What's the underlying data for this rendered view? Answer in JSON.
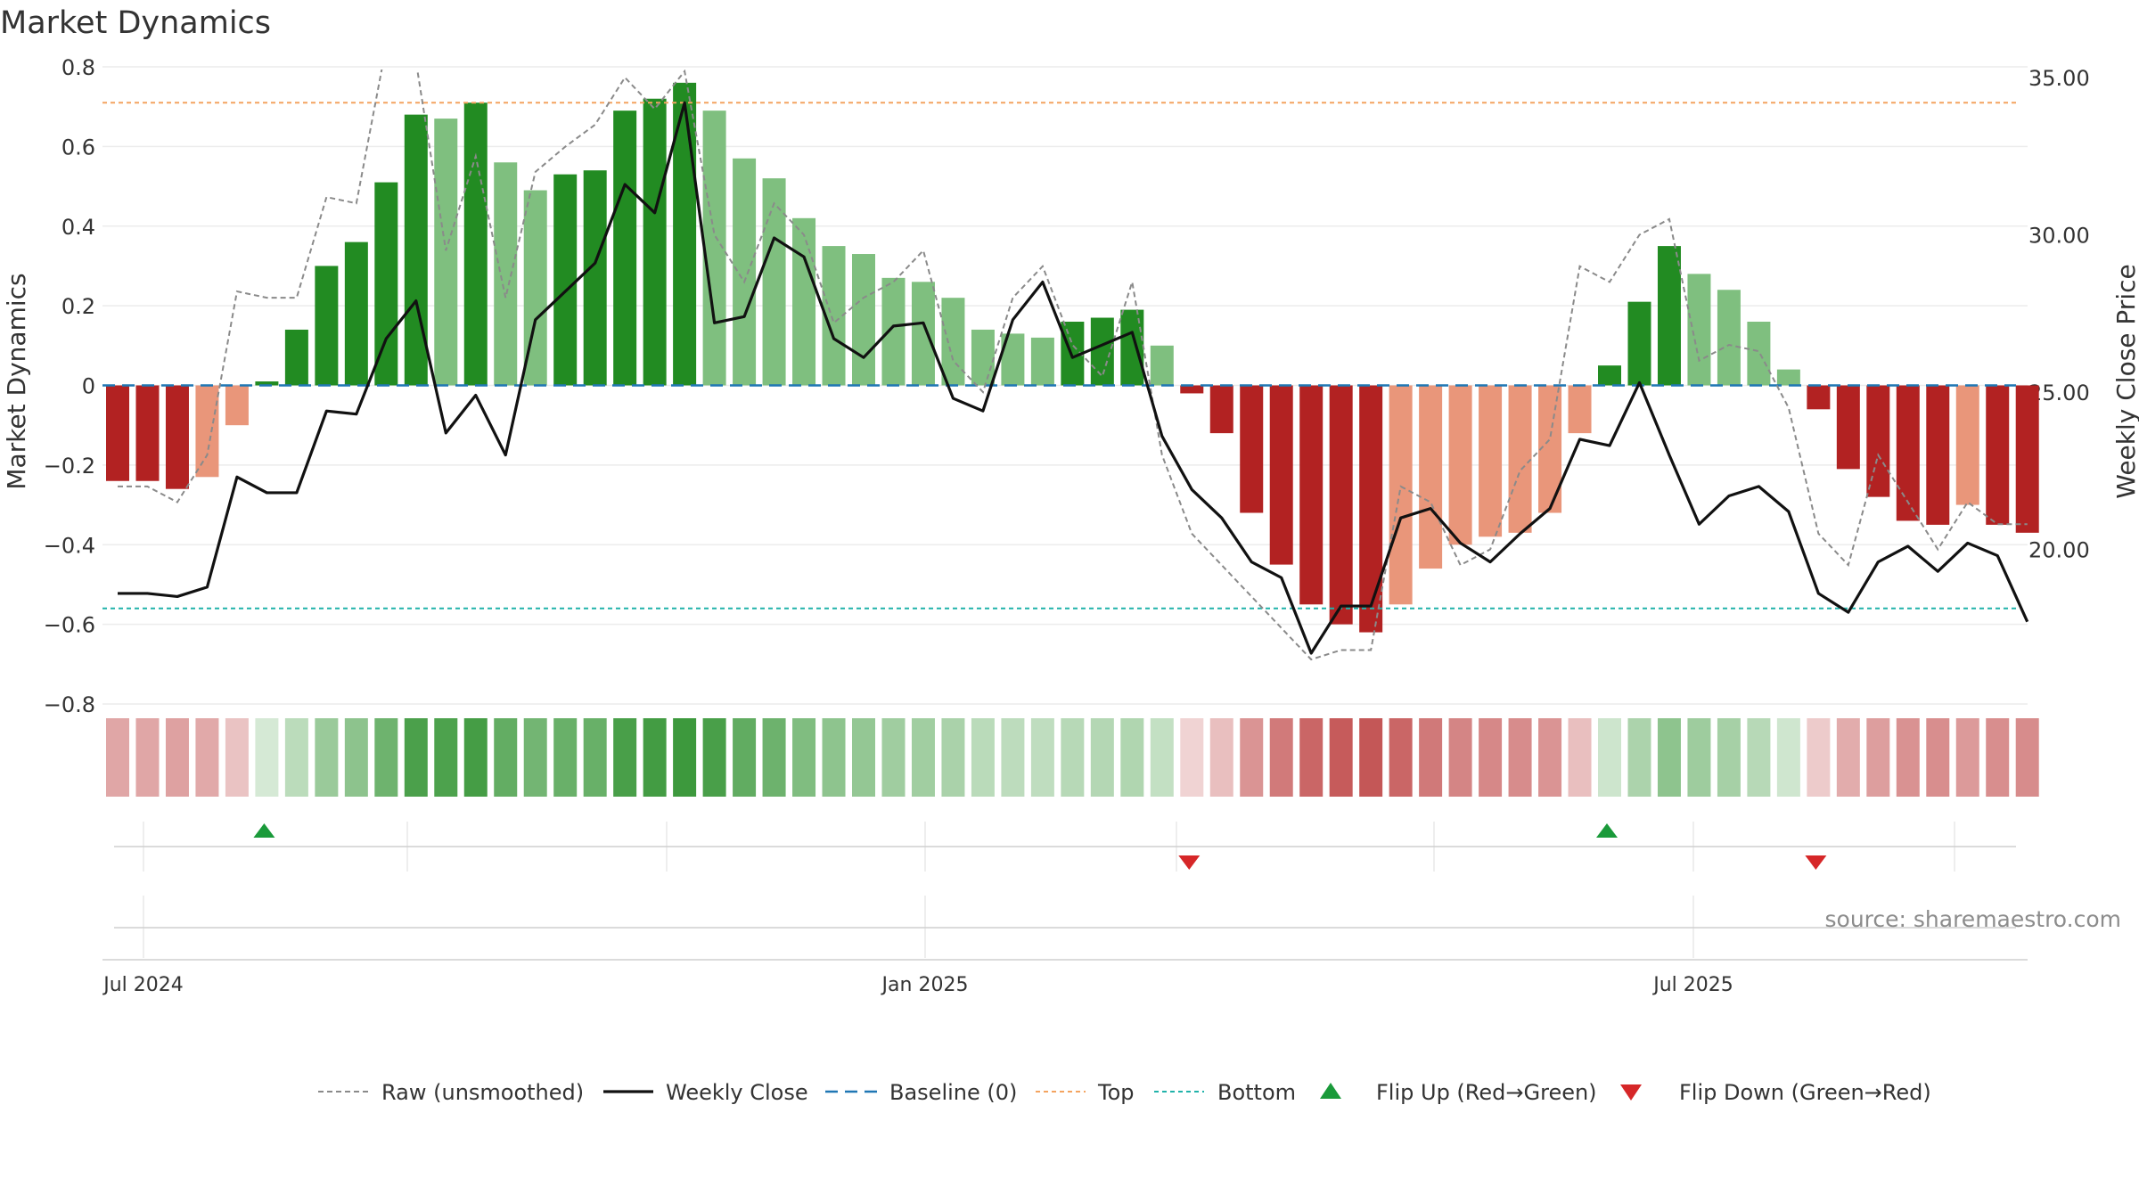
{
  "title": "Market Dynamics",
  "source": "source: sharemaestro.com",
  "colors": {
    "strong_green": "#228B22",
    "light_green": "#7FBF7F",
    "strong_red": "#B22222",
    "light_red": "#E9967A",
    "close_line": "#111111",
    "raw_line": "#8a8a8a",
    "baseline": "#1f77b4",
    "top": "#F4A460",
    "bottom": "#20B2AA",
    "flip_up": "#1a9a3a",
    "flip_down": "#d62728"
  },
  "chart_data": {
    "type": "bar",
    "ylabel": "Market Dynamics",
    "y2label": "Weekly Close Price",
    "ylim": [
      -0.8,
      0.8
    ],
    "y2lim": [
      15,
      35
    ],
    "yticks": [
      "0.8",
      "0.6",
      "0.4",
      "0.2",
      "0",
      "−0.2",
      "−0.4",
      "−0.6",
      "−0.8"
    ],
    "y2ticks": [
      "35.00",
      "30.00",
      "25.00",
      "20.00"
    ],
    "xticks": [
      "Jul 2024",
      "Jan 2025",
      "Jul 2025"
    ],
    "top_level": 0.71,
    "bottom_level": -0.56,
    "grid": true,
    "bars": [
      -0.24,
      -0.24,
      -0.26,
      -0.23,
      -0.1,
      0.01,
      0.14,
      0.3,
      0.36,
      0.51,
      0.68,
      0.67,
      0.71,
      0.56,
      0.49,
      0.53,
      0.54,
      0.69,
      0.72,
      0.76,
      0.69,
      0.57,
      0.52,
      0.42,
      0.35,
      0.33,
      0.27,
      0.26,
      0.22,
      0.14,
      0.13,
      0.12,
      0.16,
      0.17,
      0.19,
      0.1,
      -0.02,
      -0.12,
      -0.32,
      -0.45,
      -0.55,
      -0.6,
      -0.62,
      -0.55,
      -0.46,
      -0.4,
      -0.38,
      -0.37,
      -0.32,
      -0.12,
      0.05,
      0.21,
      0.35,
      0.28,
      0.24,
      0.16,
      0.04,
      -0.06,
      -0.21,
      -0.28,
      -0.34,
      -0.35,
      -0.3,
      -0.35,
      -0.37
    ],
    "bar_strength": [
      "strong",
      "strong",
      "strong",
      "light",
      "light",
      "strong",
      "strong",
      "strong",
      "strong",
      "strong",
      "strong",
      "light",
      "strong",
      "light",
      "light",
      "strong",
      "strong",
      "strong",
      "strong",
      "strong",
      "light",
      "light",
      "light",
      "light",
      "light",
      "light",
      "light",
      "light",
      "light",
      "light",
      "light",
      "light",
      "strong",
      "strong",
      "strong",
      "light",
      "strong",
      "strong",
      "strong",
      "strong",
      "strong",
      "strong",
      "strong",
      "light",
      "light",
      "light",
      "light",
      "light",
      "light",
      "light",
      "strong",
      "strong",
      "strong",
      "light",
      "light",
      "light",
      "light",
      "strong",
      "strong",
      "strong",
      "strong",
      "strong",
      "light",
      "strong",
      "strong"
    ],
    "weekly_close": [
      18.6,
      18.6,
      18.5,
      18.8,
      22.3,
      21.8,
      21.8,
      24.4,
      24.3,
      26.7,
      27.9,
      23.7,
      24.9,
      23.0,
      27.3,
      28.2,
      29.1,
      31.6,
      30.7,
      34.2,
      27.2,
      27.4,
      29.9,
      29.3,
      26.7,
      26.1,
      27.1,
      27.2,
      24.8,
      24.4,
      27.3,
      28.5,
      26.1,
      26.5,
      26.9,
      23.6,
      21.9,
      21.0,
      19.6,
      19.1,
      16.7,
      18.2,
      18.2,
      21.0,
      21.3,
      20.2,
      19.6,
      20.5,
      21.3,
      23.5,
      23.3,
      25.3,
      23.0,
      20.8,
      21.7,
      22.0,
      21.2,
      18.6,
      18.0,
      19.6,
      20.1,
      19.3,
      20.2,
      19.8,
      17.7
    ],
    "raw": [
      22.0,
      22.0,
      21.5,
      23.0,
      28.2,
      28.0,
      28.0,
      31.2,
      31.0,
      36.0,
      35.5,
      29.5,
      32.5,
      28.0,
      32.0,
      32.8,
      33.5,
      35.0,
      34.0,
      35.2,
      30.0,
      28.5,
      31.0,
      30.0,
      27.2,
      28.0,
      28.5,
      29.5,
      26.0,
      25.0,
      28.0,
      29.0,
      26.5,
      25.5,
      28.5,
      23.0,
      20.5,
      19.5,
      18.5,
      17.5,
      16.5,
      16.8,
      16.8,
      22.0,
      21.5,
      19.5,
      20.0,
      22.5,
      23.5,
      29.0,
      28.5,
      30.0,
      30.5,
      26.0,
      26.5,
      26.3,
      24.5,
      20.5,
      19.5,
      23.0,
      21.5,
      20.0,
      21.5,
      20.8,
      20.8
    ],
    "heat": [
      0.32,
      0.32,
      0.35,
      0.3,
      0.13,
      0.01,
      0.18,
      0.4,
      0.48,
      0.68,
      0.91,
      0.89,
      0.95,
      0.75,
      0.65,
      0.71,
      0.72,
      0.92,
      0.96,
      1.0,
      0.92,
      0.76,
      0.69,
      0.56,
      0.47,
      0.44,
      0.36,
      0.35,
      0.29,
      0.19,
      0.17,
      0.16,
      0.21,
      0.23,
      0.25,
      0.13,
      0.03,
      0.16,
      0.43,
      0.6,
      0.73,
      0.8,
      0.83,
      0.73,
      0.61,
      0.53,
      0.51,
      0.49,
      0.43,
      0.16,
      0.07,
      0.28,
      0.47,
      0.37,
      0.32,
      0.21,
      0.05,
      0.08,
      0.28,
      0.37,
      0.45,
      0.47,
      0.4,
      0.47,
      0.49
    ],
    "flips": [
      {
        "index": 5,
        "dir": "up"
      },
      {
        "index": 36,
        "dir": "down"
      },
      {
        "index": 50,
        "dir": "up"
      },
      {
        "index": 57,
        "dir": "down"
      }
    ]
  },
  "legend": [
    {
      "label": "Raw (unsmoothed)",
      "kind": "raw"
    },
    {
      "label": "Weekly Close",
      "kind": "close"
    },
    {
      "label": "Baseline (0)",
      "kind": "baseline"
    },
    {
      "label": "Top",
      "kind": "top"
    },
    {
      "label": "Bottom",
      "kind": "bottom"
    },
    {
      "label": "Flip Up (Red→Green)",
      "kind": "flip_up"
    },
    {
      "label": "Flip Down (Green→Red)",
      "kind": "flip_down"
    }
  ]
}
